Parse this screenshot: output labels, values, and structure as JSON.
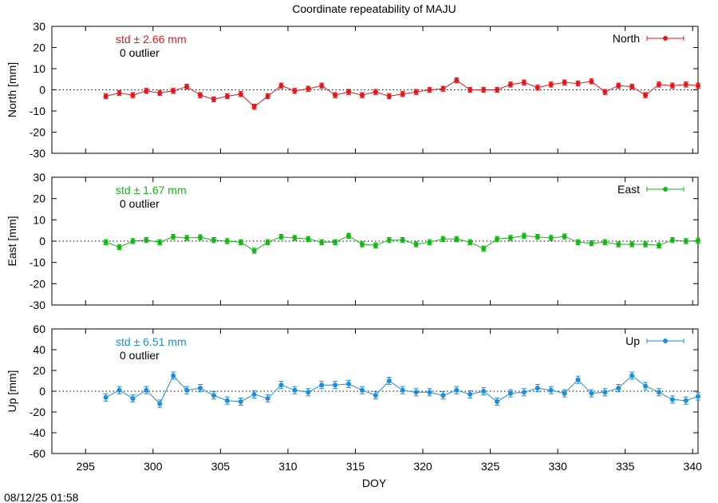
{
  "title": "Coordinate repeatability of MAJU",
  "xlabel": "DOY",
  "timestamp": "08/12/25 01:58",
  "x_ticks": [
    295,
    300,
    305,
    310,
    315,
    320,
    325,
    330,
    335,
    340
  ],
  "chart_data": [
    {
      "type": "line",
      "ylabel": "North [mm]",
      "legend": "North",
      "legend_position": "top-right",
      "color": "#e8161b",
      "std_label": "std ± 2.66 mm",
      "outlier_label": "0 outlier",
      "xlim": [
        292.5,
        340.4
      ],
      "ylim": [
        -30,
        30
      ],
      "y_ticks": [
        -30,
        -20,
        -10,
        0,
        10,
        20,
        30
      ],
      "zero_line": true,
      "x": [
        296.5,
        297.5,
        298.5,
        299.5,
        300.5,
        301.5,
        302.5,
        303.5,
        304.5,
        305.5,
        306.5,
        307.5,
        308.5,
        309.5,
        310.5,
        311.5,
        312.5,
        313.5,
        314.5,
        315.5,
        316.5,
        317.5,
        318.5,
        319.5,
        320.5,
        321.5,
        322.5,
        323.5,
        324.5,
        325.5,
        326.5,
        327.5,
        328.5,
        329.5,
        330.5,
        331.5,
        332.5,
        333.5,
        334.5,
        335.5,
        336.5,
        337.5,
        338.5,
        339.5,
        340.4
      ],
      "y": [
        -3,
        -1.5,
        -2.5,
        -0.5,
        -1.5,
        -0.5,
        1.5,
        -2.5,
        -4.5,
        -3,
        -2,
        -8,
        -3,
        2,
        -0.5,
        0.5,
        2,
        -2.5,
        -1,
        -2.5,
        -1,
        -3,
        -2,
        -1,
        0,
        0.5,
        4.5,
        0,
        0,
        0,
        2.5,
        3.5,
        1,
        2.5,
        3.5,
        3,
        4,
        -1,
        2,
        1.5,
        -2.5,
        2.5,
        2,
        2.5,
        2
      ],
      "err": 1.2
    },
    {
      "type": "line",
      "ylabel": "East [mm]",
      "legend": "East",
      "legend_position": "top-right",
      "color": "#14b814",
      "std_label": "std ± 1.67 mm",
      "outlier_label": "0 outlier",
      "xlim": [
        292.5,
        340.4
      ],
      "ylim": [
        -30,
        30
      ],
      "y_ticks": [
        -30,
        -20,
        -10,
        0,
        10,
        20,
        30
      ],
      "zero_line": true,
      "x": [
        296.5,
        297.5,
        298.5,
        299.5,
        300.5,
        301.5,
        302.5,
        303.5,
        304.5,
        305.5,
        306.5,
        307.5,
        308.5,
        309.5,
        310.5,
        311.5,
        312.5,
        313.5,
        314.5,
        315.5,
        316.5,
        317.5,
        318.5,
        319.5,
        320.5,
        321.5,
        322.5,
        323.5,
        324.5,
        325.5,
        326.5,
        327.5,
        328.5,
        329.5,
        330.5,
        331.5,
        332.5,
        333.5,
        334.5,
        335.5,
        336.5,
        337.5,
        338.5,
        339.5,
        340.4
      ],
      "y": [
        -0.5,
        -2.8,
        0,
        0.5,
        -0.5,
        2,
        1.5,
        1.8,
        0.5,
        0,
        -0.5,
        -4.5,
        -0.5,
        2,
        1.5,
        1,
        -0.5,
        -0.5,
        2.5,
        -1.5,
        -2,
        0.5,
        0.5,
        -1.5,
        -0.5,
        1,
        1,
        -0.5,
        -3.5,
        1,
        1.5,
        2.5,
        2,
        1.5,
        2.2,
        -0.5,
        -1,
        -0.5,
        -1.5,
        -1.5,
        -1.5,
        -2,
        0.5,
        0,
        0.2
      ],
      "err": 1.2
    },
    {
      "type": "line",
      "ylabel": "Up [mm]",
      "legend": "Up",
      "legend_position": "top-right",
      "color": "#1a8ee0",
      "std_label": "std ± 6.51 mm",
      "outlier_label": "0 outlier",
      "xlim": [
        292.5,
        340.4
      ],
      "ylim": [
        -60,
        60
      ],
      "y_ticks": [
        -60,
        -40,
        -20,
        0,
        20,
        40,
        60
      ],
      "zero_line": true,
      "x": [
        296.5,
        297.5,
        298.5,
        299.5,
        300.5,
        301.5,
        302.5,
        303.5,
        304.5,
        305.5,
        306.5,
        307.5,
        308.5,
        309.5,
        310.5,
        311.5,
        312.5,
        313.5,
        314.5,
        315.5,
        316.5,
        317.5,
        318.5,
        319.5,
        320.5,
        321.5,
        322.5,
        323.5,
        324.5,
        325.5,
        326.5,
        327.5,
        328.5,
        329.5,
        330.5,
        331.5,
        332.5,
        333.5,
        334.5,
        335.5,
        336.5,
        337.5,
        338.5,
        339.5,
        340.4
      ],
      "y": [
        -6,
        1,
        -7,
        1,
        -12,
        15,
        1,
        3,
        -4,
        -9,
        -10,
        -3,
        -7,
        6,
        1,
        -1,
        6,
        6,
        7,
        1,
        -4,
        10,
        1,
        -1,
        -1,
        -4,
        1,
        -3,
        0,
        -10,
        -2,
        -1,
        3,
        1,
        -2,
        11,
        -2,
        -1,
        3,
        15,
        5,
        -1,
        -8,
        -9,
        -5
      ],
      "err": 3.5
    }
  ]
}
